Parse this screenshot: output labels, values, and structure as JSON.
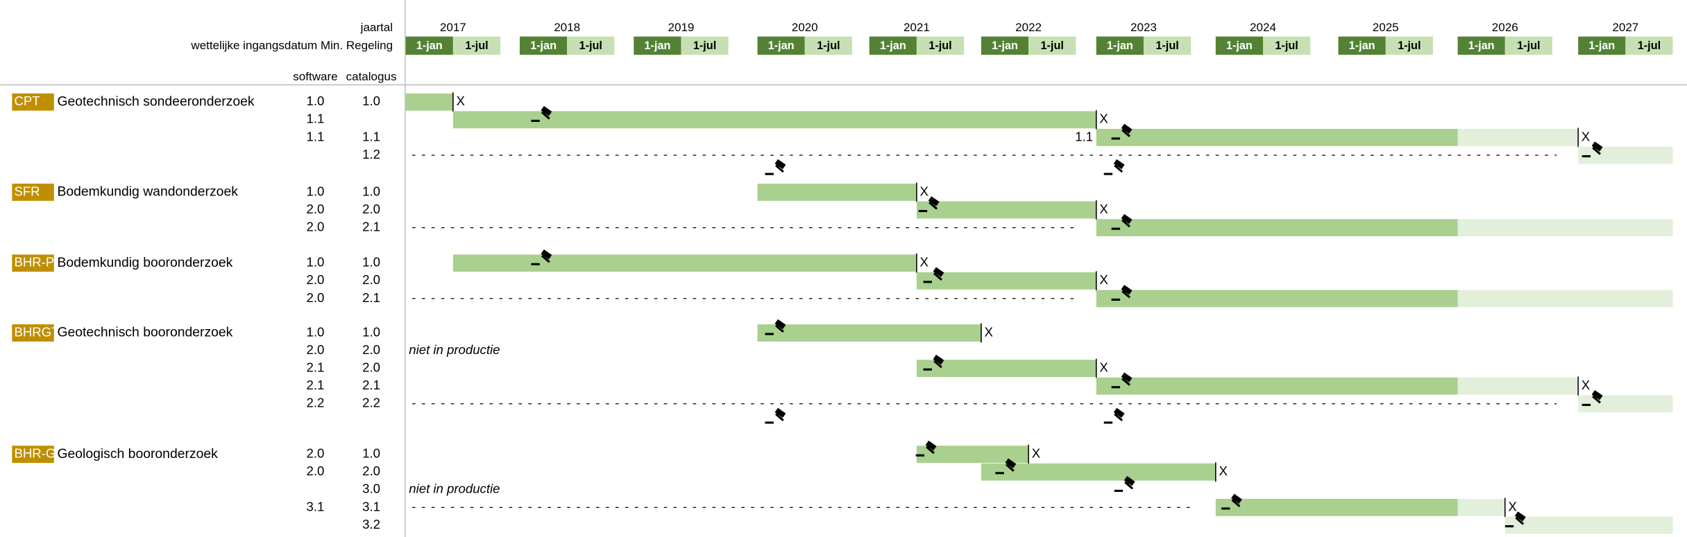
{
  "header": {
    "year_label": "jaartal",
    "date_label": "wettelijke ingangsdatum Min. Regeling",
    "software_label": "software",
    "catalogus_label": "catalogus",
    "half_labels": [
      "1-jan",
      "1-jul"
    ],
    "years": [
      2017,
      2018,
      2019,
      2020,
      2021,
      2022,
      2023,
      2024,
      2025,
      2026,
      2027
    ]
  },
  "colors": {
    "dark": "#a9d08e",
    "light": "#e2efda",
    "jan": "#548235",
    "jul": "#c6e0b4",
    "tag": "#bf8f00"
  },
  "groups": [
    {
      "code": "CPT",
      "name": "Geotechnisch sondeeronderzoek",
      "rows": [
        {
          "software": "1.0",
          "catalogus": "1.0",
          "bars": [
            {
              "start": 2017.0,
              "end": 2017.5,
              "shade": "dark",
              "end_label": "X"
            }
          ]
        },
        {
          "software": "1.1",
          "bars": [
            {
              "start": 2017.5,
              "end": 2023.0,
              "shade": "dark",
              "end_label": "X"
            }
          ],
          "gavels": [
            2018.2
          ]
        },
        {
          "software": "1.1",
          "catalogus": "1.1",
          "start_label": "1.1",
          "bars": [
            {
              "start": 2023.0,
              "end": 2026.0,
              "shade": "dark"
            },
            {
              "start": 2026.0,
              "end": 2027.0,
              "shade": "light",
              "end_label": "X"
            }
          ],
          "gavels": [
            2023.24
          ]
        },
        {
          "catalogus": "1.2",
          "dashed": true,
          "bars": [
            {
              "start": 2027.0,
              "end": 2028.0,
              "shade": "light"
            }
          ],
          "gavels": [
            2027.12
          ]
        },
        {
          "gavels": [
            2020.16,
            2023.16
          ]
        }
      ]
    },
    {
      "code": "SFR",
      "name": "Bodemkundig wandonderzoek",
      "rows": [
        {
          "software": "1.0",
          "catalogus": "1.0",
          "bars": [
            {
              "start": 2020.0,
              "end": 2021.5,
              "shade": "dark",
              "end_label": "X"
            }
          ]
        },
        {
          "software": "2.0",
          "catalogus": "2.0",
          "bars": [
            {
              "start": 2021.5,
              "end": 2023.0,
              "shade": "dark",
              "end_label": "X"
            }
          ],
          "gavels": [
            2021.6
          ]
        },
        {
          "software": "2.0",
          "catalogus": "2.1",
          "dashed": true,
          "bars": [
            {
              "start": 2023.0,
              "end": 2026.0,
              "shade": "dark"
            },
            {
              "start": 2026.0,
              "end": 2028.0,
              "shade": "light"
            }
          ],
          "gavels": [
            2023.24
          ]
        }
      ]
    },
    {
      "code": "BHR-P",
      "name": "Bodemkundig booronderzoek",
      "rows": [
        {
          "software": "1.0",
          "catalogus": "1.0",
          "bars": [
            {
              "start": 2017.5,
              "end": 2021.5,
              "shade": "dark",
              "end_label": "X"
            }
          ],
          "gavels": [
            2018.2
          ]
        },
        {
          "software": "2.0",
          "catalogus": "2.0",
          "bars": [
            {
              "start": 2021.5,
              "end": 2023.0,
              "shade": "dark",
              "end_label": "X"
            }
          ],
          "gavels": [
            2021.65
          ]
        },
        {
          "software": "2.0",
          "catalogus": "2.1",
          "dashed": true,
          "bars": [
            {
              "start": 2023.0,
              "end": 2026.0,
              "shade": "dark"
            },
            {
              "start": 2026.0,
              "end": 2028.0,
              "shade": "light"
            }
          ],
          "gavels": [
            2023.24
          ]
        }
      ]
    },
    {
      "code": "BHRGT",
      "name": "Geotechnisch booronderzoek",
      "rows": [
        {
          "software": "1.0",
          "catalogus": "1.0",
          "bars": [
            {
              "start": 2020.0,
              "end": 2022.0,
              "shade": "dark",
              "end_label": "X"
            }
          ],
          "gavels": [
            2020.16
          ]
        },
        {
          "software": "2.0",
          "catalogus": "2.0",
          "note": "niet in productie"
        },
        {
          "software": "2.1",
          "catalogus": "2.0",
          "bars": [
            {
              "start": 2021.5,
              "end": 2023.0,
              "shade": "dark",
              "end_label": "X"
            }
          ],
          "gavels": [
            2021.65
          ]
        },
        {
          "software": "2.1",
          "catalogus": "2.1",
          "bars": [
            {
              "start": 2023.0,
              "end": 2026.0,
              "shade": "dark"
            },
            {
              "start": 2026.0,
              "end": 2027.0,
              "shade": "light",
              "end_label": "X"
            }
          ],
          "gavels": [
            2023.24
          ]
        },
        {
          "software": "2.2",
          "catalogus": "2.2",
          "dashed": true,
          "bars": [
            {
              "start": 2027.0,
              "end": 2028.0,
              "shade": "light"
            }
          ],
          "gavels": [
            2027.12
          ]
        },
        {
          "gavels": [
            2020.16,
            2023.16
          ]
        }
      ]
    },
    {
      "code": "BHR-G",
      "name": "Geologisch booronderzoek",
      "rows": [
        {
          "software": "2.0",
          "catalogus": "1.0",
          "bars": [
            {
              "start": 2021.5,
              "end": 2022.5,
              "shade": "dark",
              "end_label": "X"
            }
          ],
          "gavels": [
            2021.57
          ]
        },
        {
          "software": "2.0",
          "catalogus": "2.0",
          "bars": [
            {
              "start": 2022.0,
              "end": 2024.0,
              "shade": "dark",
              "end_label": "X"
            }
          ],
          "gavels": [
            2022.23
          ]
        },
        {
          "catalogus": "3.0",
          "note": "niet in productie",
          "gavels": [
            2023.27
          ]
        },
        {
          "software": "3.1",
          "catalogus": "3.1",
          "dashed": true,
          "bars": [
            {
              "start": 2024.0,
              "end": 2026.0,
              "shade": "dark"
            },
            {
              "start": 2026.0,
              "end": 2026.5,
              "shade": "light",
              "end_label": "X"
            }
          ],
          "gavels": [
            2024.14
          ]
        },
        {
          "catalogus": "3.2",
          "bars": [
            {
              "start": 2026.5,
              "end": 2028.0,
              "shade": "light"
            }
          ],
          "gavels": [
            2026.58
          ]
        }
      ]
    }
  ]
}
